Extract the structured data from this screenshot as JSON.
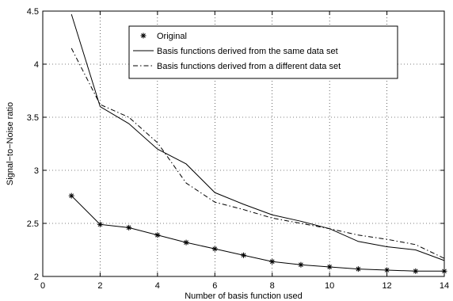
{
  "chart_data": {
    "type": "line",
    "title": "",
    "xlabel": "Number of basis function used",
    "ylabel": "Signal−to−Noise ratio",
    "xlim": [
      0,
      14
    ],
    "ylim": [
      2,
      4.5
    ],
    "xticks": [
      0,
      2,
      4,
      6,
      8,
      10,
      12,
      14
    ],
    "yticks": [
      2,
      2.5,
      3,
      3.5,
      4,
      4.5
    ],
    "xtick_labels": [
      "0",
      "2",
      "4",
      "6",
      "8",
      "10",
      "12",
      "14"
    ],
    "ytick_labels": [
      "2",
      "2.5",
      "3",
      "3.5",
      "4",
      "4.5"
    ],
    "grid": true,
    "legend_position": "top-right",
    "x": [
      1,
      2,
      3,
      4,
      5,
      6,
      7,
      8,
      9,
      10,
      11,
      12,
      13,
      14
    ],
    "series": [
      {
        "name": "Original",
        "style": "markers",
        "marker": "asterisk",
        "color": "#000000",
        "values": [
          2.76,
          2.49,
          2.46,
          2.39,
          2.32,
          2.26,
          2.2,
          2.14,
          2.11,
          2.09,
          2.07,
          2.06,
          2.05,
          2.05
        ]
      },
      {
        "name": "Basis functions derived from the same data set",
        "style": "solid",
        "color": "#000000",
        "values": [
          4.47,
          3.6,
          3.44,
          3.2,
          3.06,
          2.79,
          2.68,
          2.58,
          2.52,
          2.45,
          2.33,
          2.28,
          2.25,
          2.15
        ]
      },
      {
        "name": "Basis functions derived from a different data set",
        "style": "dashdot",
        "color": "#000000",
        "values": [
          4.15,
          3.62,
          3.5,
          3.26,
          2.88,
          2.7,
          2.63,
          2.55,
          2.5,
          2.45,
          2.39,
          2.35,
          2.3,
          2.17
        ]
      }
    ]
  }
}
